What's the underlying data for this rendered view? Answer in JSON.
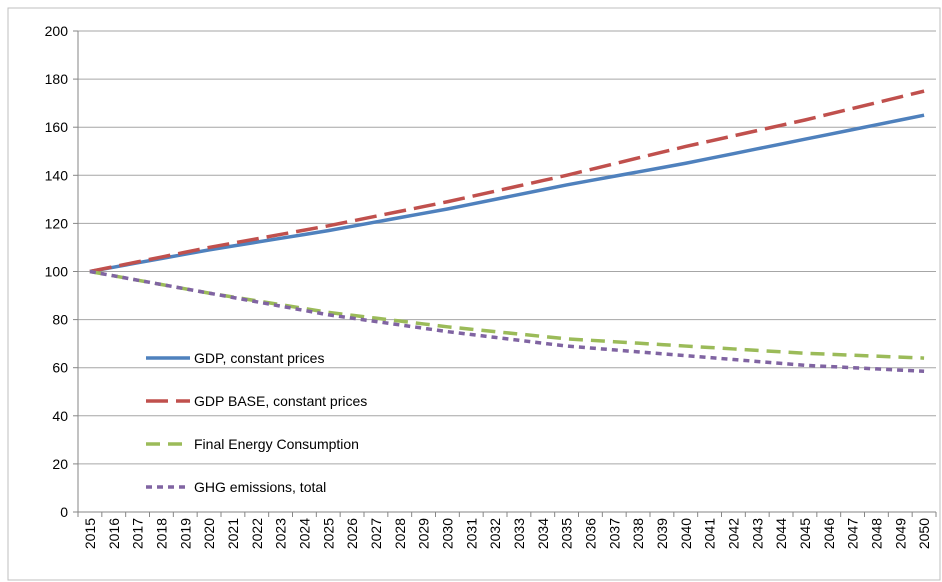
{
  "chart_data": {
    "type": "line",
    "categories": [
      "2015",
      "2016",
      "2017",
      "2018",
      "2019",
      "2020",
      "2021",
      "2022",
      "2023",
      "2024",
      "2025",
      "2026",
      "2027",
      "2028",
      "2029",
      "2030",
      "2031",
      "2032",
      "2033",
      "2034",
      "2035",
      "2036",
      "2037",
      "2038",
      "2039",
      "2040",
      "2041",
      "2042",
      "2043",
      "2044",
      "2045",
      "2046",
      "2047",
      "2048",
      "2049",
      "2050"
    ],
    "series": [
      {
        "name": "GDP, constant prices",
        "color": "#4f81bd",
        "dash": "solid",
        "values": [
          100,
          101.8,
          103.6,
          105.4,
          107.2,
          109,
          110.6,
          112.2,
          113.8,
          115.4,
          117,
          118.8,
          120.6,
          122.4,
          124.2,
          126,
          128,
          130,
          132,
          134,
          136,
          137.8,
          139.6,
          141.4,
          143.2,
          145,
          147,
          149,
          151,
          153,
          155,
          157,
          159,
          161,
          163,
          165
        ]
      },
      {
        "name": "GDP BASE, constant prices",
        "color": "#c0504d",
        "dash": "long",
        "values": [
          100,
          102,
          104,
          106,
          108,
          110,
          111.8,
          113.6,
          115.4,
          117.2,
          119,
          121,
          123,
          125,
          127,
          129,
          131.2,
          133.4,
          135.6,
          137.8,
          140,
          142.4,
          144.8,
          147.2,
          149.6,
          152,
          154.2,
          156.4,
          158.6,
          160.8,
          163,
          165.4,
          167.8,
          170.2,
          172.6,
          175
        ]
      },
      {
        "name": "Final Energy Consumption",
        "color": "#9bbb59",
        "dash": "medium",
        "values": [
          100,
          98.2,
          96.4,
          94.6,
          92.8,
          91,
          89.4,
          87.8,
          86.2,
          84.6,
          83,
          81.8,
          80.6,
          79.4,
          78.2,
          77,
          76,
          75,
          74,
          73,
          72,
          71.4,
          70.8,
          70.2,
          69.6,
          69,
          68.4,
          67.8,
          67.2,
          66.6,
          66,
          65.6,
          65.2,
          64.8,
          64.4,
          64
        ]
      },
      {
        "name": "GHG emissions, total",
        "color": "#8064a2",
        "dash": "short",
        "values": [
          100,
          98.2,
          96.4,
          94.6,
          92.8,
          91,
          89.2,
          87.4,
          85.6,
          83.8,
          82,
          80.6,
          79.2,
          77.8,
          76.4,
          75,
          73.8,
          72.6,
          71.4,
          70.2,
          69,
          68.2,
          67.4,
          66.6,
          65.8,
          65,
          64.2,
          63.4,
          62.6,
          61.8,
          61,
          60.5,
          60,
          59.5,
          59,
          58.5
        ]
      }
    ],
    "ylim": [
      0,
      200
    ],
    "yticks": [
      0,
      20,
      40,
      60,
      80,
      100,
      120,
      140,
      160,
      180,
      200
    ],
    "grid": true,
    "legend": "center-left"
  }
}
